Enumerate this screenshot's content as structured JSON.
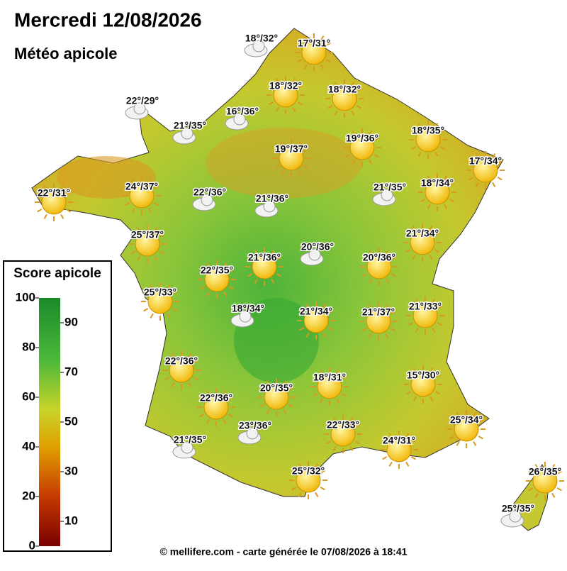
{
  "header": {
    "title": "Mercredi 12/08/2026",
    "subtitle": "Météo apicole"
  },
  "legend": {
    "title": "Score apicole",
    "range": [
      0,
      100
    ],
    "ticks": [
      0,
      10,
      20,
      30,
      40,
      50,
      60,
      70,
      80,
      90,
      100
    ]
  },
  "stations": [
    "18°/32°",
    "17°/31°",
    "18°/32°",
    "18°/32°",
    "22°/29°",
    "16°/36°",
    "21°/35°",
    "18°/35°",
    "19°/36°",
    "19°/37°",
    "17°/34°",
    "22°/31°",
    "24°/37°",
    "22°/36°",
    "21°/35°",
    "18°/34°",
    "21°/36°",
    "21°/34°",
    "25°/37°",
    "20°/36°",
    "21°/36°",
    "20°/36°",
    "22°/35°",
    "25°/33°",
    "18°/34°",
    "21°/34°",
    "21°/37°",
    "21°/33°",
    "22°/36°",
    "15°/30°",
    "18°/31°",
    "20°/35°",
    "22°/36°",
    "25°/34°",
    "23°/36°",
    "22°/33°",
    "24°/31°",
    "21°/35°",
    "25°/32°",
    "26°/35°",
    "25°/35°"
  ],
  "footer": "© mellifere.com - carte générée le 07/08/2026 à 18:41"
}
